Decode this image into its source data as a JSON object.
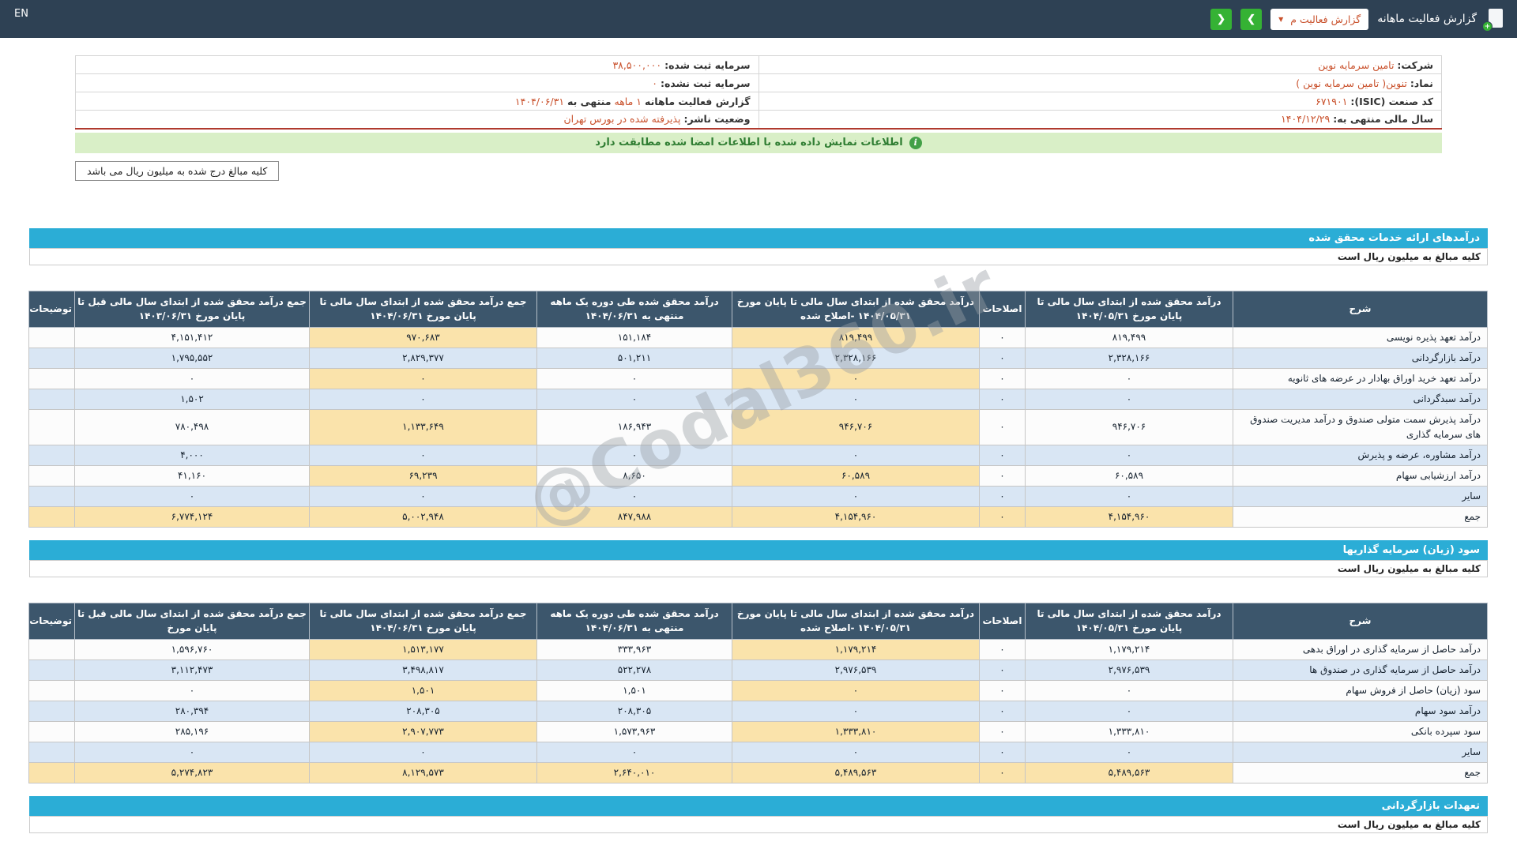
{
  "colors": {
    "topbar_bg": "#2e4154",
    "section_header_bg": "#2badd6",
    "table_header_bg": "#3c566c",
    "row_alt_bg": "#d9e6f4",
    "highlight_bg": "#fae3ab",
    "banner_bg": "#d9efc7",
    "banner_text": "#2f7d32",
    "accent_red": "#c9512c",
    "nav_green": "#35b234",
    "divider_red": "#b03a2e"
  },
  "topbar": {
    "language": "EN",
    "title": "گزارش فعالیت ماهانه",
    "dropdown_value": "گزارش فعالیت م",
    "caret_glyph": "▼",
    "back_glyph": "❮",
    "forward_glyph": "❯"
  },
  "info": {
    "company_label": "شرکت:",
    "company_value": "تامین سرمایه نوین",
    "symbol_label": "نماد:",
    "symbol_value": "تنوین( تامین سرمایه نوین )",
    "isic_label": "کد صنعت (ISIC):",
    "isic_value": "۶۷۱۹۰۱",
    "fiscal_year_label": "سال مالی منتهی به:",
    "fiscal_year_value": "۱۴۰۴/۱۲/۲۹",
    "registered_capital_label": "سرمایه ثبت شده:",
    "registered_capital_value": "۳۸,۵۰۰,۰۰۰",
    "unregistered_capital_label": "سرمایه ثبت نشده:",
    "unregistered_capital_value": "۰",
    "report_period_label": "گزارش فعالیت ماهانه",
    "report_period_value": "۱ ماهه",
    "report_period_mid": "منتهی به",
    "report_period_date": "۱۴۰۴/۰۶/۳۱",
    "issuer_status_label": "وضعیت ناشر:",
    "issuer_status_value": "پذیرفته شده در بورس تهران"
  },
  "banner_text": "اطلاعات نمایش داده شده با اطلاعات امضا شده مطابقت دارد",
  "info_icon_glyph": "i",
  "amounts_note": "کلیه مبالغ درج شده به میلیون ریال می باشد",
  "watermark": "@Codal360.ir",
  "sections": [
    {
      "title": "درآمدهای ارائه خدمات محقق شده",
      "subtitle": "کلیه مبالغ به میلیون ریال است",
      "table": {
        "headers": [
          "شرح",
          "درآمد محقق شده از ابتدای سال مالی تا پایان مورخ ۱۴۰۴/۰۵/۳۱",
          "اصلاحات",
          "درآمد محقق شده از ابتدای سال مالی تا پایان مورخ ۱۴۰۴/۰۵/۳۱ -اصلاح شده",
          "درآمد محقق شده طی دوره یک ماهه منتهی به ۱۴۰۴/۰۶/۳۱",
          "جمع درآمد محقق شده از ابتدای سال مالی تا پایان مورخ ۱۴۰۴/۰۶/۳۱",
          "جمع درآمد محقق شده از ابتدای سال مالی قبل تا پایان مورخ ۱۴۰۳/۰۶/۳۱",
          "توضیحات"
        ],
        "rows": [
          {
            "label": "درآمد تعهد پذیره نویسی",
            "values": [
              "۸۱۹,۴۹۹",
              "۰",
              "۸۱۹,۴۹۹",
              "۱۵۱,۱۸۴",
              "۹۷۰,۶۸۳",
              "۴,۱۵۱,۴۱۲",
              ""
            ]
          },
          {
            "label": "درآمد بازارگردانی",
            "values": [
              "۲,۳۲۸,۱۶۶",
              "۰",
              "۲,۳۲۸,۱۶۶",
              "۵۰۱,۲۱۱",
              "۲,۸۲۹,۳۷۷",
              "۱,۷۹۵,۵۵۲",
              ""
            ]
          },
          {
            "label": "درآمد تعهد خرید اوراق بهادار در عرضه های ثانویه",
            "values": [
              "۰",
              "۰",
              "۰",
              "۰",
              "۰",
              "۰",
              ""
            ]
          },
          {
            "label": "درآمد سبدگردانی",
            "values": [
              "۰",
              "۰",
              "۰",
              "۰",
              "۰",
              "۱,۵۰۲",
              ""
            ]
          },
          {
            "label": "درآمد پذیرش سمت متولی صندوق و درآمد مدیریت صندوق های سرمایه گذاری",
            "values": [
              "۹۴۶,۷۰۶",
              "۰",
              "۹۴۶,۷۰۶",
              "۱۸۶,۹۴۳",
              "۱,۱۳۳,۶۴۹",
              "۷۸۰,۴۹۸",
              ""
            ]
          },
          {
            "label": "درآمد مشاوره، عرضه و پذیرش",
            "values": [
              "۰",
              "۰",
              "۰",
              "۰",
              "۰",
              "۴,۰۰۰",
              ""
            ]
          },
          {
            "label": "درآمد ارزشیابی سهام",
            "values": [
              "۶۰,۵۸۹",
              "۰",
              "۶۰,۵۸۹",
              "۸,۶۵۰",
              "۶۹,۲۳۹",
              "۴۱,۱۶۰",
              ""
            ]
          },
          {
            "label": "سایر",
            "values": [
              "۰",
              "۰",
              "۰",
              "۰",
              "۰",
              "۰",
              ""
            ]
          },
          {
            "label": "جمع",
            "total": true,
            "values": [
              "۴,۱۵۴,۹۶۰",
              "۰",
              "۴,۱۵۴,۹۶۰",
              "۸۴۷,۹۸۸",
              "۵,۰۰۲,۹۴۸",
              "۶,۷۷۴,۱۲۴",
              ""
            ]
          }
        ]
      }
    },
    {
      "title": "سود (زیان) سرمایه گذاریها",
      "subtitle": "کلیه مبالغ به میلیون ریال است",
      "table": {
        "headers": [
          "شرح",
          "درآمد محقق شده از ابتدای سال مالی تا پایان مورخ ۱۴۰۴/۰۵/۳۱",
          "اصلاحات",
          "درآمد محقق شده از ابتدای سال مالی تا پایان مورخ ۱۴۰۴/۰۵/۳۱ -اصلاح شده",
          "درآمد محقق شده طی دوره یک ماهه منتهی به ۱۴۰۴/۰۶/۳۱",
          "جمع درآمد محقق شده از ابتدای سال مالی تا پایان مورخ ۱۴۰۴/۰۶/۳۱",
          "جمع درآمد محقق شده از ابتدای سال مالی قبل تا پایان مورخ",
          "توضیحات"
        ],
        "rows": [
          {
            "label": "درآمد حاصل از سرمایه گذاری در اوراق بدهی",
            "values": [
              "۱,۱۷۹,۲۱۴",
              "۰",
              "۱,۱۷۹,۲۱۴",
              "۳۳۳,۹۶۳",
              "۱,۵۱۳,۱۷۷",
              "۱,۵۹۶,۷۶۰",
              ""
            ]
          },
          {
            "label": "درآمد حاصل از سرمایه گذاری در صندوق ها",
            "values": [
              "۲,۹۷۶,۵۳۹",
              "۰",
              "۲,۹۷۶,۵۳۹",
              "۵۲۲,۲۷۸",
              "۳,۴۹۸,۸۱۷",
              "۳,۱۱۲,۴۷۳",
              ""
            ]
          },
          {
            "label": "سود (زیان) حاصل از فروش سهام",
            "values": [
              "۰",
              "۰",
              "۰",
              "۱,۵۰۱",
              "۱,۵۰۱",
              "۰",
              ""
            ]
          },
          {
            "label": "درآمد سود سهام",
            "values": [
              "۰",
              "۰",
              "۰",
              "۲۰۸,۳۰۵",
              "۲۰۸,۳۰۵",
              "۲۸۰,۳۹۴",
              ""
            ]
          },
          {
            "label": "سود سپرده بانکی",
            "values": [
              "۱,۳۳۳,۸۱۰",
              "۰",
              "۱,۳۳۳,۸۱۰",
              "۱,۵۷۳,۹۶۳",
              "۲,۹۰۷,۷۷۳",
              "۲۸۵,۱۹۶",
              ""
            ]
          },
          {
            "label": "سایر",
            "values": [
              "۰",
              "۰",
              "۰",
              "۰",
              "۰",
              "۰",
              ""
            ]
          },
          {
            "label": "جمع",
            "total": true,
            "values": [
              "۵,۴۸۹,۵۶۳",
              "۰",
              "۵,۴۸۹,۵۶۳",
              "۲,۶۴۰,۰۱۰",
              "۸,۱۲۹,۵۷۳",
              "۵,۲۷۴,۸۲۳",
              ""
            ]
          }
        ]
      }
    },
    {
      "title": "تعهدات بازارگردانی",
      "subtitle": "کلیه مبالغ به میلیون ریال است"
    }
  ]
}
